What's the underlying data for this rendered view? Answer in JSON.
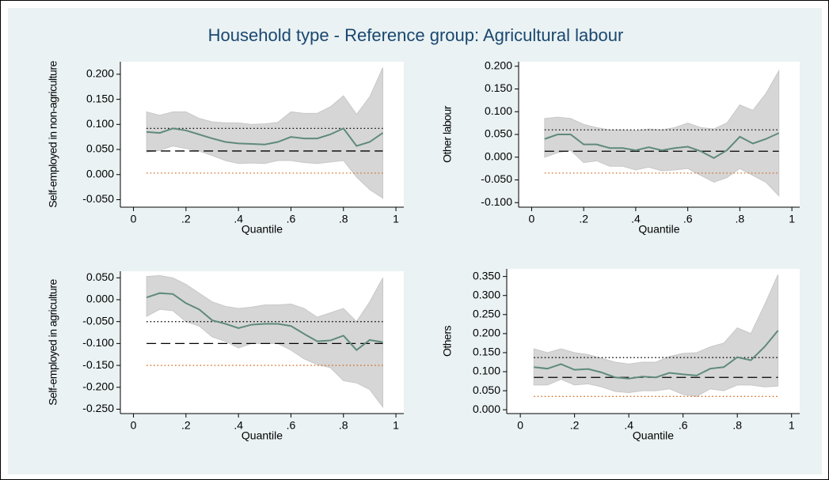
{
  "title": "Household type - Reference group: Agricultural labour",
  "chart_data": [
    {
      "type": "line",
      "ylabel": "Self-employed in non-agriculture",
      "xlabel": "Quantile",
      "x": [
        0.05,
        0.1,
        0.15,
        0.2,
        0.25,
        0.3,
        0.35,
        0.4,
        0.45,
        0.5,
        0.55,
        0.6,
        0.65,
        0.7,
        0.75,
        0.8,
        0.85,
        0.9,
        0.95
      ],
      "series": [
        {
          "color": "#5f8a7c",
          "values": [
            0.085,
            0.083,
            0.092,
            0.088,
            0.08,
            0.072,
            0.065,
            0.062,
            0.061,
            0.06,
            0.065,
            0.075,
            0.072,
            0.072,
            0.08,
            0.092,
            0.057,
            0.065,
            0.083
          ]
        }
      ],
      "band": {
        "color": "#d6d6d6",
        "upper": [
          0.125,
          0.118,
          0.125,
          0.125,
          0.112,
          0.105,
          0.103,
          0.103,
          0.1,
          0.101,
          0.104,
          0.125,
          0.122,
          0.122,
          0.135,
          0.157,
          0.12,
          0.155,
          0.213
        ],
        "lower": [
          0.045,
          0.048,
          0.057,
          0.052,
          0.047,
          0.038,
          0.028,
          0.022,
          0.023,
          0.022,
          0.028,
          0.028,
          0.024,
          0.022,
          0.025,
          0.028,
          -0.005,
          -0.03,
          -0.047
        ]
      },
      "hlines": [
        {
          "value": 0.092,
          "color": "#000000",
          "dash": "dotted"
        },
        {
          "value": 0.047,
          "color": "#000000",
          "dash": "dashed"
        },
        {
          "value": 0.003,
          "color": "#d2691e",
          "dash": "dotted"
        }
      ],
      "xlim": [
        -0.05,
        1.03
      ],
      "xticks": [
        0,
        {
          "value": 0.2,
          "label": ".2"
        },
        {
          "value": 0.4,
          "label": ".4"
        },
        {
          "value": 0.6,
          "label": ".6"
        },
        {
          "value": 0.8,
          "label": ".8"
        },
        1
      ],
      "ylim": [
        -0.065,
        0.225
      ],
      "yticks": [
        {
          "value": -0.05,
          "label": "-0.050"
        },
        {
          "value": 0,
          "label": "0.000"
        },
        {
          "value": 0.05,
          "label": "0.050"
        },
        {
          "value": 0.1,
          "label": "0.100"
        },
        {
          "value": 0.15,
          "label": "0.150"
        },
        {
          "value": 0.2,
          "label": "0.200"
        }
      ]
    },
    {
      "type": "line",
      "ylabel": "Other labour",
      "xlabel": "Quantile",
      "x": [
        0.05,
        0.1,
        0.15,
        0.2,
        0.25,
        0.3,
        0.35,
        0.4,
        0.45,
        0.5,
        0.55,
        0.6,
        0.65,
        0.7,
        0.75,
        0.8,
        0.85,
        0.9,
        0.95
      ],
      "series": [
        {
          "color": "#5f8a7c",
          "values": [
            0.04,
            0.05,
            0.05,
            0.028,
            0.028,
            0.02,
            0.02,
            0.015,
            0.022,
            0.015,
            0.02,
            0.023,
            0.013,
            -0.002,
            0.015,
            0.045,
            0.03,
            0.04,
            0.053
          ]
        }
      ],
      "band": {
        "color": "#d6d6d6",
        "upper": [
          0.085,
          0.088,
          0.085,
          0.072,
          0.065,
          0.06,
          0.06,
          0.058,
          0.062,
          0.06,
          0.065,
          0.075,
          0.065,
          0.062,
          0.075,
          0.115,
          0.103,
          0.14,
          0.19
        ],
        "lower": [
          0.0,
          0.01,
          0.015,
          -0.012,
          -0.008,
          -0.02,
          -0.02,
          -0.028,
          -0.022,
          -0.03,
          -0.028,
          -0.025,
          -0.04,
          -0.055,
          -0.045,
          -0.025,
          -0.04,
          -0.055,
          -0.085
        ]
      },
      "hlines": [
        {
          "value": 0.06,
          "color": "#000000",
          "dash": "dotted"
        },
        {
          "value": 0.013,
          "color": "#000000",
          "dash": "dashed"
        },
        {
          "value": -0.035,
          "color": "#d2691e",
          "dash": "dotted"
        }
      ],
      "xlim": [
        -0.05,
        1.03
      ],
      "xticks": [
        0,
        {
          "value": 0.2,
          "label": ".2"
        },
        {
          "value": 0.4,
          "label": ".4"
        },
        {
          "value": 0.6,
          "label": ".6"
        },
        {
          "value": 0.8,
          "label": ".8"
        },
        1
      ],
      "ylim": [
        -0.11,
        0.21
      ],
      "yticks": [
        {
          "value": -0.1,
          "label": "-0.100"
        },
        {
          "value": -0.05,
          "label": "-0.050"
        },
        {
          "value": 0,
          "label": "0.000"
        },
        {
          "value": 0.05,
          "label": "0.050"
        },
        {
          "value": 0.1,
          "label": "0.100"
        },
        {
          "value": 0.15,
          "label": "0.150"
        },
        {
          "value": 0.2,
          "label": "0.200"
        }
      ]
    },
    {
      "type": "line",
      "ylabel": "Self-employed in agriculture",
      "xlabel": "Quantile",
      "x": [
        0.05,
        0.1,
        0.15,
        0.2,
        0.25,
        0.3,
        0.35,
        0.4,
        0.45,
        0.5,
        0.55,
        0.6,
        0.65,
        0.7,
        0.75,
        0.8,
        0.85,
        0.9,
        0.95
      ],
      "series": [
        {
          "color": "#5f8a7c",
          "values": [
            0.005,
            0.015,
            0.013,
            -0.008,
            -0.022,
            -0.047,
            -0.055,
            -0.065,
            -0.057,
            -0.055,
            -0.055,
            -0.06,
            -0.078,
            -0.095,
            -0.093,
            -0.082,
            -0.115,
            -0.092,
            -0.097
          ]
        }
      ],
      "band": {
        "color": "#d6d6d6",
        "upper": [
          0.053,
          0.055,
          0.05,
          0.035,
          0.015,
          -0.005,
          -0.015,
          -0.02,
          -0.017,
          -0.012,
          -0.012,
          -0.01,
          -0.02,
          -0.04,
          -0.03,
          -0.02,
          -0.05,
          -0.005,
          0.05
        ],
        "lower": [
          -0.038,
          -0.022,
          -0.025,
          -0.05,
          -0.06,
          -0.085,
          -0.095,
          -0.11,
          -0.1,
          -0.1,
          -0.1,
          -0.115,
          -0.135,
          -0.148,
          -0.155,
          -0.185,
          -0.19,
          -0.205,
          -0.245
        ]
      },
      "hlines": [
        {
          "value": -0.05,
          "color": "#000000",
          "dash": "dotted"
        },
        {
          "value": -0.1,
          "color": "#000000",
          "dash": "dashed"
        },
        {
          "value": -0.15,
          "color": "#d2691e",
          "dash": "dotted"
        }
      ],
      "xlim": [
        -0.05,
        1.03
      ],
      "xticks": [
        0,
        {
          "value": 0.2,
          "label": ".2"
        },
        {
          "value": 0.4,
          "label": ".4"
        },
        {
          "value": 0.6,
          "label": ".6"
        },
        {
          "value": 0.8,
          "label": ".8"
        },
        1
      ],
      "ylim": [
        -0.26,
        0.065
      ],
      "yticks": [
        {
          "value": -0.25,
          "label": "-0.250"
        },
        {
          "value": -0.2,
          "label": "-0.200"
        },
        {
          "value": -0.15,
          "label": "-0.150"
        },
        {
          "value": -0.1,
          "label": "-0.100"
        },
        {
          "value": -0.05,
          "label": "-0.050"
        },
        {
          "value": 0,
          "label": "0.000"
        },
        {
          "value": 0.05,
          "label": "0.050"
        }
      ]
    },
    {
      "type": "line",
      "ylabel": "Others",
      "xlabel": "Quantile",
      "x": [
        0.05,
        0.1,
        0.15,
        0.2,
        0.25,
        0.3,
        0.35,
        0.4,
        0.45,
        0.5,
        0.55,
        0.6,
        0.65,
        0.7,
        0.75,
        0.8,
        0.85,
        0.9,
        0.95
      ],
      "series": [
        {
          "color": "#5f8a7c",
          "values": [
            0.112,
            0.108,
            0.12,
            0.105,
            0.107,
            0.098,
            0.085,
            0.082,
            0.087,
            0.085,
            0.097,
            0.093,
            0.09,
            0.108,
            0.112,
            0.138,
            0.13,
            0.165,
            0.208
          ]
        }
      ],
      "band": {
        "color": "#d6d6d6",
        "upper": [
          0.16,
          0.15,
          0.16,
          0.15,
          0.145,
          0.135,
          0.125,
          0.12,
          0.125,
          0.125,
          0.14,
          0.148,
          0.15,
          0.165,
          0.175,
          0.215,
          0.2,
          0.275,
          0.355
        ],
        "lower": [
          0.065,
          0.065,
          0.08,
          0.065,
          0.068,
          0.06,
          0.048,
          0.045,
          0.05,
          0.05,
          0.055,
          0.04,
          0.035,
          0.055,
          0.05,
          0.065,
          0.065,
          0.06,
          0.062
        ]
      },
      "hlines": [
        {
          "value": 0.137,
          "color": "#000000",
          "dash": "dotted"
        },
        {
          "value": 0.085,
          "color": "#000000",
          "dash": "dashed"
        },
        {
          "value": 0.035,
          "color": "#d2691e",
          "dash": "dotted"
        }
      ],
      "xlim": [
        -0.05,
        1.03
      ],
      "xticks": [
        0,
        {
          "value": 0.2,
          "label": ".2"
        },
        {
          "value": 0.4,
          "label": ".4"
        },
        {
          "value": 0.6,
          "label": ".6"
        },
        {
          "value": 0.8,
          "label": ".8"
        },
        1
      ],
      "ylim": [
        -0.01,
        0.37
      ],
      "yticks": [
        {
          "value": 0,
          "label": "0.000"
        },
        {
          "value": 0.05,
          "label": "0.050"
        },
        {
          "value": 0.1,
          "label": "0.100"
        },
        {
          "value": 0.15,
          "label": "0.150"
        },
        {
          "value": 0.2,
          "label": "0.200"
        },
        {
          "value": 0.25,
          "label": "0.250"
        },
        {
          "value": 0.3,
          "label": "0.300"
        },
        {
          "value": 0.35,
          "label": "0.350"
        }
      ]
    }
  ]
}
